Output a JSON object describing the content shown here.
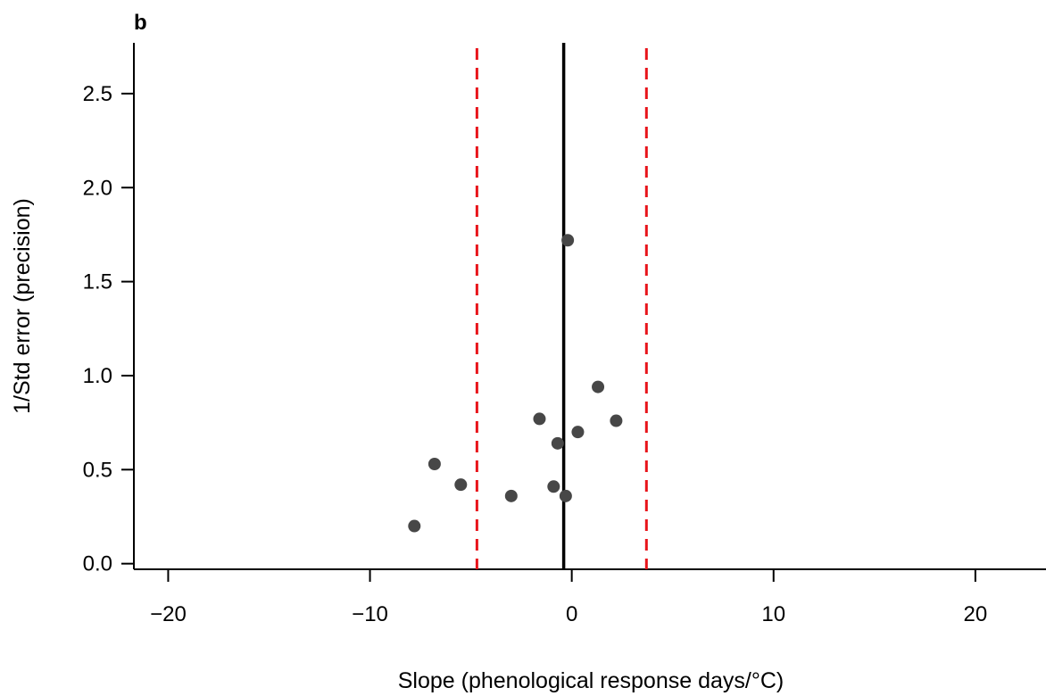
{
  "chart_data": {
    "type": "scatter",
    "panel_label": "b",
    "title": "",
    "xlabel": "Slope (phenological response days/°C)",
    "ylabel": "1/Std error (precision)",
    "xlim": [
      -21.7,
      23.5
    ],
    "ylim": [
      -0.03,
      2.77
    ],
    "x_ticks": [
      {
        "value": -20,
        "label": "−20"
      },
      {
        "value": -10,
        "label": "−10"
      },
      {
        "value": 0,
        "label": "0"
      },
      {
        "value": 10,
        "label": "10"
      },
      {
        "value": 20,
        "label": "20"
      }
    ],
    "y_ticks": [
      {
        "value": 0.0,
        "label": "0.0"
      },
      {
        "value": 0.5,
        "label": "0.5"
      },
      {
        "value": 1.0,
        "label": "1.0"
      },
      {
        "value": 1.5,
        "label": "1.5"
      },
      {
        "value": 2.0,
        "label": "2.0"
      },
      {
        "value": 2.5,
        "label": "2.5"
      }
    ],
    "mean_line": {
      "x": -0.4,
      "color": "#000000",
      "style": "solid"
    },
    "ci_lines": [
      {
        "x": -4.7,
        "color": "#e8141a",
        "style": "dashed"
      },
      {
        "x": 3.7,
        "color": "#e8141a",
        "style": "dashed"
      }
    ],
    "point_color": "#474747",
    "points": [
      {
        "x": -0.2,
        "y": 1.72
      },
      {
        "x": 1.3,
        "y": 0.94
      },
      {
        "x": -1.6,
        "y": 0.77
      },
      {
        "x": 2.2,
        "y": 0.76
      },
      {
        "x": 0.3,
        "y": 0.7
      },
      {
        "x": -0.7,
        "y": 0.64
      },
      {
        "x": -6.8,
        "y": 0.53
      },
      {
        "x": -5.5,
        "y": 0.42
      },
      {
        "x": -3.0,
        "y": 0.36
      },
      {
        "x": -0.9,
        "y": 0.41
      },
      {
        "x": -0.3,
        "y": 0.36
      },
      {
        "x": -7.8,
        "y": 0.2
      }
    ],
    "grid": false,
    "legend": "none"
  }
}
